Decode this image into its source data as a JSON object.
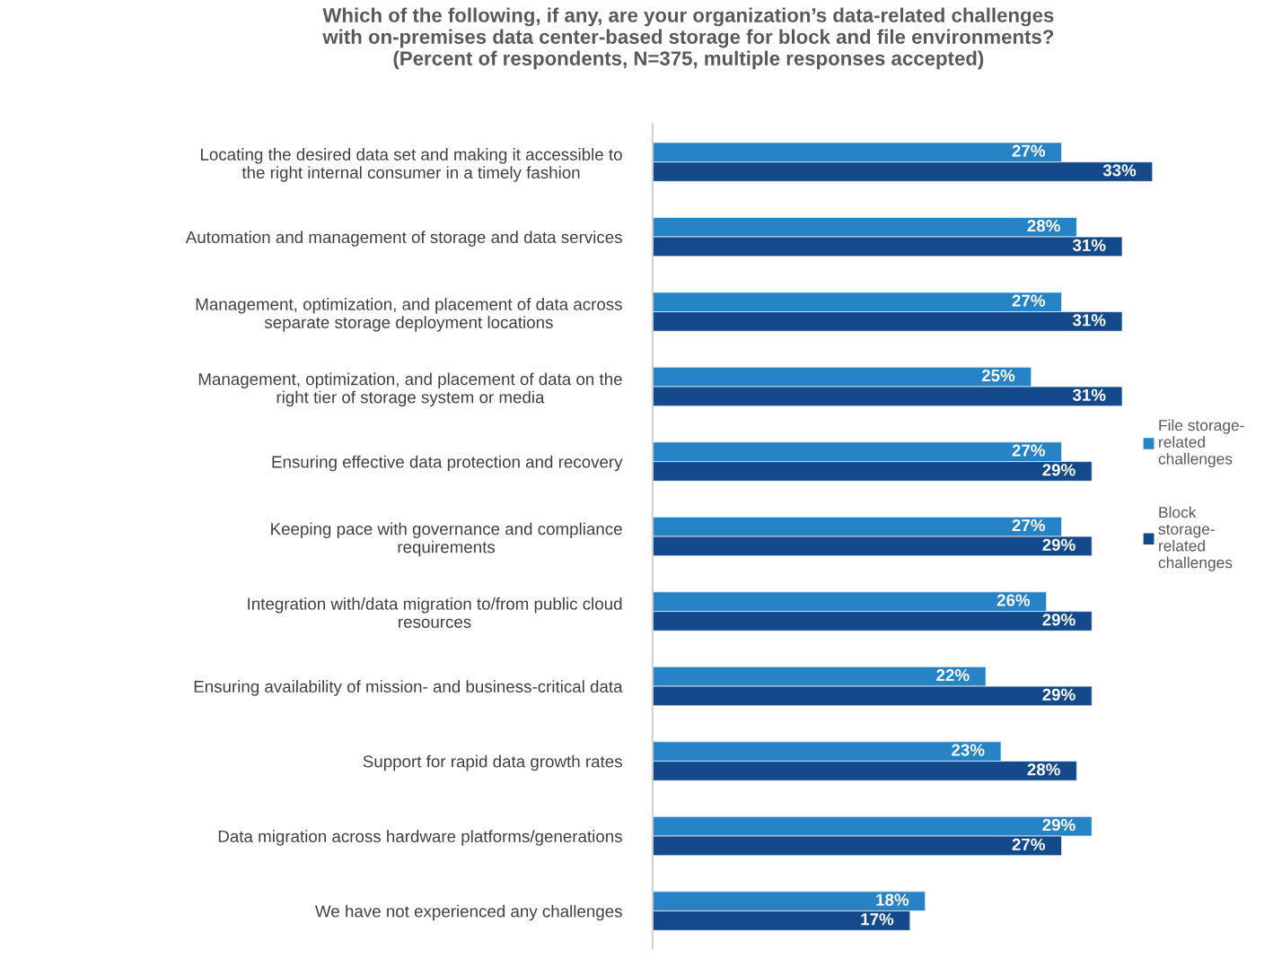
{
  "chart_data": {
    "type": "bar",
    "orientation": "horizontal",
    "title": "Which of the following, if any, are your organization’s data-related challenges\nwith on-premises data center-based storage for block and file environments?\n(Percent of respondents, N=375, multiple responses accepted)",
    "categories": [
      "Locating the desired data set and making it accessible to\nthe right internal consumer in a timely fashion",
      "Automation and management of storage and data services",
      "Management, optimization, and placement of data across\nseparate storage deployment locations",
      "Management, optimization, and placement of data on the\nright tier of storage system or media",
      "Ensuring effective data protection and recovery",
      "Keeping pace with governance and compliance\nrequirements",
      "Integration with/data migration to/from public cloud\nresources",
      "Ensuring availability of mission- and business-critical data",
      "Support for rapid data growth rates",
      "Data migration across hardware platforms/generations",
      "We have not experienced any challenges"
    ],
    "series": [
      {
        "name": "File storage-\nrelated\nchallenges",
        "color": "#2683c6",
        "values": [
          27,
          28,
          27,
          25,
          27,
          27,
          26,
          22,
          23,
          29,
          18
        ],
        "value_labels": [
          "27%",
          "28%",
          "27%",
          "25%",
          "27%",
          "27%",
          "26%",
          "22%",
          "23%",
          "29%",
          "18%"
        ]
      },
      {
        "name": "Block\nstorage-\nrelated\nchallenges",
        "color": "#144a8c",
        "values": [
          33,
          31,
          31,
          31,
          29,
          29,
          29,
          29,
          28,
          27,
          17
        ],
        "value_labels": [
          "33%",
          "31%",
          "31%",
          "31%",
          "29%",
          "29%",
          "29%",
          "29%",
          "28%",
          "27%",
          "17%"
        ]
      }
    ],
    "grid": false,
    "legend": "right"
  }
}
